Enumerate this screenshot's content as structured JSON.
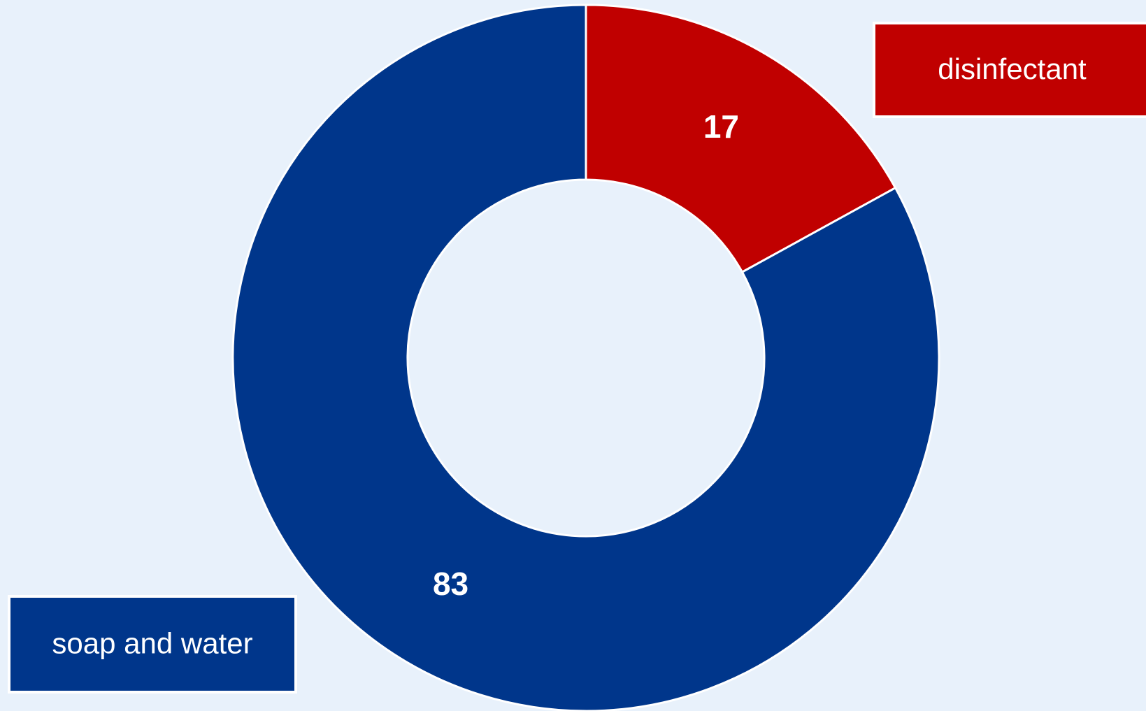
{
  "chart_data": {
    "type": "donut",
    "categories": [
      "disinfectant",
      "soap and water"
    ],
    "values": [
      17,
      83
    ],
    "colors": [
      "#c00000",
      "#00368b"
    ]
  }
}
